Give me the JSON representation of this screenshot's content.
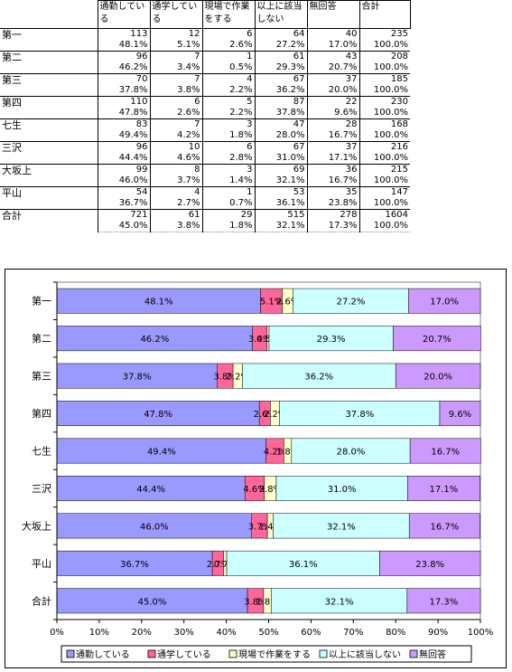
{
  "table": {
    "headers": [
      "通勤している",
      "通学している",
      "現場で作業をする",
      "以上に該当しない",
      "無回答",
      "合計"
    ],
    "rows": [
      {
        "label": "第一",
        "counts": [
          "113",
          "12",
          "6",
          "64",
          "40",
          "235"
        ],
        "pcts": [
          "48.1%",
          "5.1%",
          "2.6%",
          "27.2%",
          "17.0%",
          "100.0%"
        ]
      },
      {
        "label": "第二",
        "counts": [
          "96",
          "7",
          "1",
          "61",
          "43",
          "208"
        ],
        "pcts": [
          "46.2%",
          "3.4%",
          "0.5%",
          "29.3%",
          "20.7%",
          "100.0%"
        ]
      },
      {
        "label": "第三",
        "counts": [
          "70",
          "7",
          "4",
          "67",
          "37",
          "185"
        ],
        "pcts": [
          "37.8%",
          "3.8%",
          "2.2%",
          "36.2%",
          "20.0%",
          "100.0%"
        ]
      },
      {
        "label": "第四",
        "counts": [
          "110",
          "6",
          "5",
          "87",
          "22",
          "230"
        ],
        "pcts": [
          "47.8%",
          "2.6%",
          "2.2%",
          "37.8%",
          "9.6%",
          "100.0%"
        ]
      },
      {
        "label": "七生",
        "counts": [
          "83",
          "7",
          "3",
          "47",
          "28",
          "168"
        ],
        "pcts": [
          "49.4%",
          "4.2%",
          "1.8%",
          "28.0%",
          "16.7%",
          "100.0%"
        ]
      },
      {
        "label": "三沢",
        "counts": [
          "96",
          "10",
          "6",
          "67",
          "37",
          "216"
        ],
        "pcts": [
          "44.4%",
          "4.6%",
          "2.8%",
          "31.0%",
          "17.1%",
          "100.0%"
        ]
      },
      {
        "label": "大坂上",
        "counts": [
          "99",
          "8",
          "3",
          "69",
          "36",
          "215"
        ],
        "pcts": [
          "46.0%",
          "3.7%",
          "1.4%",
          "32.1%",
          "16.7%",
          "100.0%"
        ]
      },
      {
        "label": "平山",
        "counts": [
          "54",
          "4",
          "1",
          "53",
          "35",
          "147"
        ],
        "pcts": [
          "36.7%",
          "2.7%",
          "0.7%",
          "36.1%",
          "23.8%",
          "100.0%"
        ]
      },
      {
        "label": "合計",
        "counts": [
          "721",
          "61",
          "29",
          "515",
          "278",
          "1604"
        ],
        "pcts": [
          "45.0%",
          "3.8%",
          "1.8%",
          "32.1%",
          "17.3%",
          "100.0%"
        ]
      }
    ]
  },
  "chart_data": {
    "type": "bar",
    "orientation": "horizontal",
    "stacked": "percent",
    "categories": [
      "第一",
      "第二",
      "第三",
      "第四",
      "七生",
      "三沢",
      "大坂上",
      "平山",
      "合計"
    ],
    "series": [
      {
        "name": "通勤している",
        "color": "#9999ff",
        "values": [
          48.1,
          46.2,
          37.8,
          47.8,
          49.4,
          44.4,
          46.0,
          36.7,
          45.0
        ]
      },
      {
        "name": "通学している",
        "color": "#ff6699",
        "values": [
          5.1,
          3.4,
          3.8,
          2.6,
          4.2,
          4.6,
          3.7,
          2.7,
          3.8
        ]
      },
      {
        "name": "現場で作業をする",
        "color": "#ffffcc",
        "values": [
          2.6,
          0.5,
          2.2,
          2.2,
          1.8,
          2.8,
          1.4,
          0.7,
          1.8
        ]
      },
      {
        "name": "以上に該当しない",
        "color": "#ccffff",
        "values": [
          27.2,
          29.3,
          36.2,
          37.8,
          28.0,
          31.0,
          32.1,
          36.1,
          32.1
        ]
      },
      {
        "name": "無回答",
        "color": "#cc99ff",
        "values": [
          17.0,
          20.7,
          20.0,
          9.6,
          16.7,
          17.1,
          16.7,
          23.8,
          17.3
        ]
      }
    ],
    "xlim": [
      0,
      100
    ],
    "xticks": [
      "0%",
      "10%",
      "20%",
      "30%",
      "40%",
      "50%",
      "60%",
      "70%",
      "80%",
      "90%",
      "100%"
    ],
    "legend": "bottom",
    "title": "",
    "xlabel": "",
    "ylabel": ""
  }
}
